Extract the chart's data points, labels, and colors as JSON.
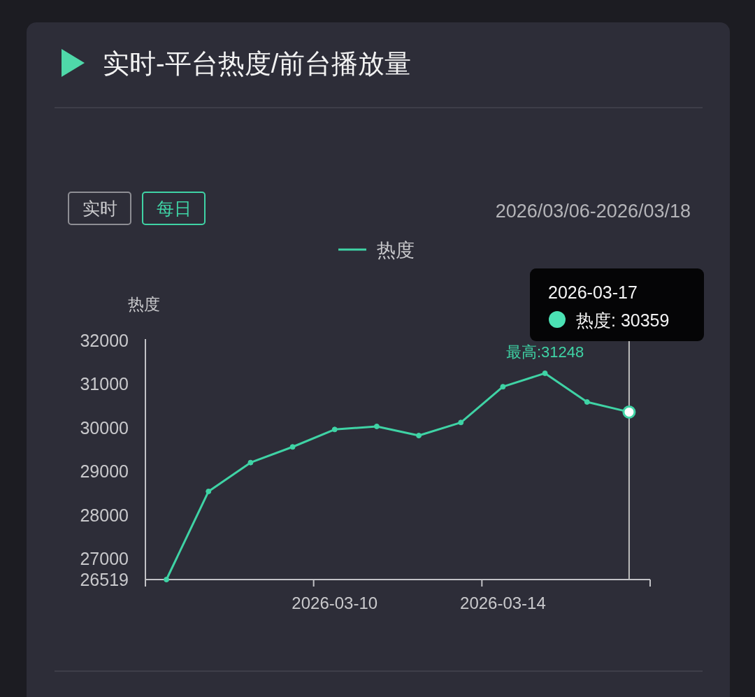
{
  "chart_data": {
    "type": "line",
    "title": "实时-平台热度/前台播放量",
    "ylabel": "热度",
    "categories": [
      null,
      null,
      null,
      null,
      "2026-03-10",
      null,
      null,
      null,
      "2026-03-14",
      null,
      null,
      null
    ],
    "series": [
      {
        "name": "热度",
        "color": "#3fd3a5",
        "values": [
          26519,
          28540,
          29200,
          29560,
          29960,
          30030,
          29820,
          30120,
          30940,
          31248,
          30590,
          30359
        ]
      }
    ],
    "ylim": [
      26519,
      32000
    ],
    "yticks": [
      26519,
      27000,
      28000,
      29000,
      30000,
      31000,
      32000
    ],
    "legend": "top",
    "marker": "circle",
    "line_style": "solid",
    "annotations": [
      "实时",
      "每日",
      "2026/03/06-2026/03/18",
      "2026-03-17",
      "热度: 30359",
      {
        "text": "最高:31248",
        "y": 31248
      }
    ]
  }
}
